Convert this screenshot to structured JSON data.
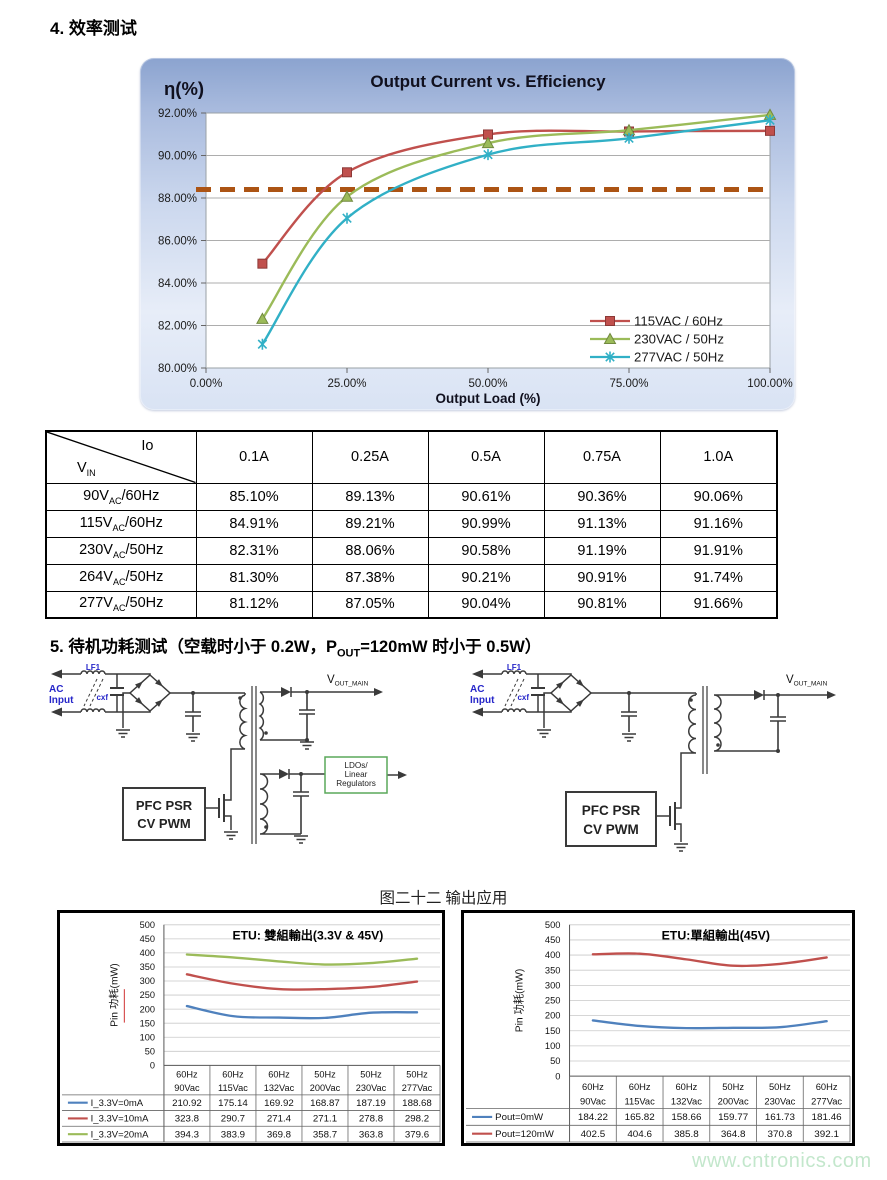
{
  "page": {
    "section4_title": "4. 效率测试",
    "section5_title_prefix": "5. 待机功耗测试（空载时小于 0.2W，P",
    "section5_title_sub": "OUT",
    "section5_title_suffix": "=120mW 时小于 0.5W）",
    "watermark": "www.cntronics.com"
  },
  "colors": {
    "series_red": "#C0504D",
    "series_green": "#9BBB59",
    "series_cyan": "#31B0C6",
    "series_blue": "#4F81BD",
    "reference_dash": "#AC5414",
    "watermark_green": "#c3e7cc",
    "panel_gradient_top": "#8ba3cf",
    "panel_gradient_bottom": "#d9e3f4"
  },
  "chart_data": [
    {
      "type": "line",
      "title": "Output Current  vs.  Efficiency",
      "y_axis_label": "η(%)",
      "xlabel": "Output Load (%)",
      "x": [
        10,
        25,
        50,
        75,
        100
      ],
      "x_tick_values": [
        0,
        25,
        50,
        75,
        100
      ],
      "x_tick_labels": [
        "0.00%",
        "25.00%",
        "50.00%",
        "75.00%",
        "100.00%"
      ],
      "xlim": [
        0,
        100
      ],
      "ylim": [
        80,
        92
      ],
      "y_tick_values": [
        80,
        82,
        84,
        86,
        88,
        90,
        92
      ],
      "y_tick_labels": [
        "80.00%",
        "82.00%",
        "84.00%",
        "86.00%",
        "88.00%",
        "90.00%",
        "92.00%"
      ],
      "grid": true,
      "legend_position": "inside-bottom-right",
      "reference_line": {
        "y": 88.4,
        "style": "dashed",
        "color": "#AC5414"
      },
      "series": [
        {
          "name": "115VAC / 60Hz",
          "marker": "square",
          "color": "#C0504D",
          "edge": "#8c3836",
          "values": [
            84.91,
            89.21,
            90.99,
            91.13,
            91.16
          ]
        },
        {
          "name": "230VAC / 50Hz",
          "marker": "triangle",
          "color": "#9BBB59",
          "edge": "#71893f",
          "values": [
            82.31,
            88.06,
            90.58,
            91.19,
            91.91
          ]
        },
        {
          "name": "277VAC / 50Hz",
          "marker": "asterisk",
          "color": "#31B0C6",
          "edge": "#2591a5",
          "values": [
            81.12,
            87.05,
            90.04,
            90.81,
            91.66
          ]
        }
      ]
    },
    {
      "type": "line",
      "title": "ETU: 雙組輸出(3.3V & 45V)",
      "ylabel": "Pin 功耗(mW)",
      "ylim": [
        0,
        500
      ],
      "ytick_step": 50,
      "grid": true,
      "categories_line1": [
        "60Hz",
        "60Hz",
        "60Hz",
        "50Hz",
        "50Hz",
        "50Hz"
      ],
      "categories_line2": [
        "90Vac",
        "115Vac",
        "132Vac",
        "200Vac",
        "230Vac",
        "277Vac"
      ],
      "series": [
        {
          "name": "I_3.3V=0mA",
          "color": "#4F81BD",
          "values": [
            210.92,
            175.14,
            169.92,
            168.87,
            187.19,
            188.68
          ]
        },
        {
          "name": "I_3.3V=10mA",
          "color": "#C0504D",
          "values": [
            323.8,
            290.7,
            271.4,
            271.1,
            278.8,
            298.2
          ]
        },
        {
          "name": "I_3.3V=20mA",
          "color": "#9BBB59",
          "values": [
            394.3,
            383.9,
            369.8,
            358.7,
            363.8,
            379.6
          ]
        }
      ]
    },
    {
      "type": "line",
      "title": "ETU:單組輸出(45V)",
      "ylabel": "Pin 功耗(mW)",
      "ylim": [
        0,
        500
      ],
      "ytick_step": 50,
      "grid": true,
      "categories_line1": [
        "60Hz",
        "60Hz",
        "60Hz",
        "50Hz",
        "50Hz",
        "60Hz"
      ],
      "categories_line2": [
        "90Vac",
        "115Vac",
        "132Vac",
        "200Vac",
        "230Vac",
        "277Vac"
      ],
      "series": [
        {
          "name": "Pout=0mW",
          "color": "#4F81BD",
          "values": [
            184.22,
            165.82,
            158.66,
            159.77,
            161.73,
            181.46
          ]
        },
        {
          "name": "Pout=120mW",
          "color": "#C0504D",
          "values": [
            402.5,
            404.6,
            385.8,
            364.8,
            370.8,
            392.1
          ]
        }
      ]
    }
  ],
  "efficiency_table": {
    "corner_top": "Io",
    "corner_bottom_base": "V",
    "corner_bottom_sub": "IN",
    "col_headers": [
      "0.1A",
      "0.25A",
      "0.5A",
      "0.75A",
      "1.0A"
    ],
    "rows": [
      {
        "label_base": "90V",
        "label_sub": "AC",
        "label_rest": "/60Hz",
        "values": [
          "85.10%",
          "89.13%",
          "90.61%",
          "90.36%",
          "90.06%"
        ]
      },
      {
        "label_base": "115V",
        "label_sub": "AC",
        "label_rest": "/60Hz",
        "values": [
          "84.91%",
          "89.21%",
          "90.99%",
          "91.13%",
          "91.16%"
        ]
      },
      {
        "label_base": "230V",
        "label_sub": "AC",
        "label_rest": "/50Hz",
        "values": [
          "82.31%",
          "88.06%",
          "90.58%",
          "91.19%",
          "91.91%"
        ]
      },
      {
        "label_base": "264V",
        "label_sub": "AC",
        "label_rest": "/50Hz",
        "values": [
          "81.30%",
          "87.38%",
          "90.21%",
          "90.91%",
          "91.74%"
        ]
      },
      {
        "label_base": "277V",
        "label_sub": "AC",
        "label_rest": "/50Hz",
        "values": [
          "81.12%",
          "87.05%",
          "90.04%",
          "90.81%",
          "91.66%"
        ]
      }
    ]
  },
  "circuits": {
    "caption": "图二十二 输出应用",
    "left": {
      "ac_input_line1": "AC",
      "ac_input_line2": "Input",
      "lf1": "LF1",
      "cxf": "cxf",
      "controller_line1": "PFC PSR",
      "controller_line2": "CV PWM",
      "vout_base": "V",
      "vout_sub": "OUT_MAIN",
      "ldo_line1": "LDOs/",
      "ldo_line2": "Linear",
      "ldo_line3": "Regulators"
    },
    "right": {
      "ac_input_line1": "AC",
      "ac_input_line2": "Input",
      "lf1": "LF1",
      "cxf": "cxf",
      "controller_line1": "PFC PSR",
      "controller_line2": "CV PWM",
      "vout_base": "V",
      "vout_sub": "OUT_MAIN"
    }
  }
}
